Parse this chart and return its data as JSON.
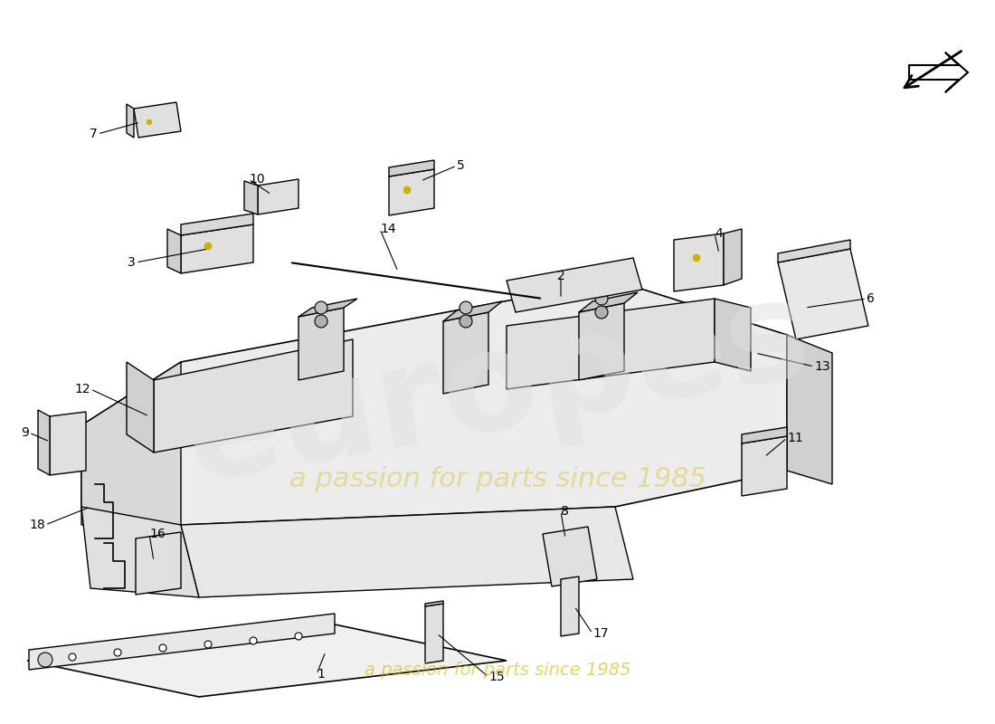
{
  "title": "",
  "background_color": "#ffffff",
  "watermark_text1": "a passion for parts since 1985",
  "line_color": "#000000",
  "label_color": "#000000",
  "part_numbers": [
    1,
    2,
    3,
    4,
    5,
    6,
    7,
    8,
    9,
    10,
    11,
    12,
    13,
    14,
    15,
    16,
    17,
    18
  ],
  "arrow_color": "#000000",
  "dim_color": "#cccccc"
}
